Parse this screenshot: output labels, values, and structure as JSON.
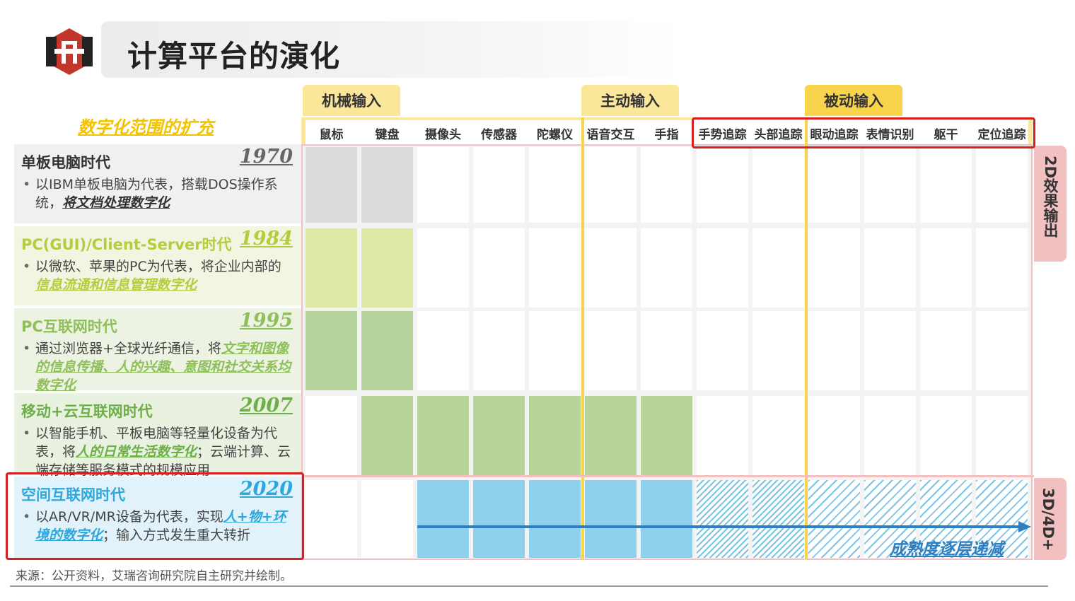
{
  "title": "计算平台的演化",
  "scope_label": "数字化范围的扩充",
  "groups": {
    "mechanical": "机械输入",
    "active": "主动输入",
    "passive": "被动输入"
  },
  "columns": [
    "鼠标",
    "键盘",
    "摄像头",
    "传感器",
    "陀螺仪",
    "语音交互",
    "手指",
    "手势追踪",
    "头部追踪",
    "眼动追踪",
    "表情识别",
    "躯干",
    "定位追踪"
  ],
  "eras": [
    {
      "name": "单板电脑时代",
      "year": "1970",
      "color": "#333333",
      "desc_pre": "以IBM单板电脑为代表，搭载DOS操作系统，",
      "desc_hl": "将文档处理数字化",
      "desc_post": ""
    },
    {
      "name": "PC(GUI)/Client-Server时代",
      "year": "1984",
      "color": "#b5cc3c",
      "desc_pre": "以微软、苹果的PC为代表，将企业内部的",
      "desc_hl": "信息流通和信息管理数字化",
      "desc_post": ""
    },
    {
      "name": "PC互联网时代",
      "year": "1995",
      "color": "#8fbf5a",
      "desc_pre": "通过浏览器+全球光纤通信，将",
      "desc_hl": "文字和图像的信息传播、人的兴趣、意图和社交关系均数字化",
      "desc_post": ""
    },
    {
      "name": "移动+云互联网时代",
      "year": "2007",
      "color": "#6eaf48",
      "desc_pre": "以智能手机、平板电脑等轻量化设备为代表，将",
      "desc_hl": "人的日常生活数字化",
      "desc_post": "；云端计算、云端存储等服务模式的规模应用"
    },
    {
      "name": "空间互联网时代",
      "year": "2020",
      "color": "#2ea8dc",
      "desc_pre": "以AR/VR/MR设备为代表，实现",
      "desc_hl": "人+物+环境的数字化",
      "desc_post": "；输入方式发生重大转折"
    }
  ],
  "side_labels": {
    "output_2d": "2D效果输出",
    "output_3d": "3D/4D+"
  },
  "maturity_label": "成熟度逐层递减",
  "source": "来源：公开资料，艾瑞咨询研究院自主研究并绘制。",
  "colors": {
    "gray": "#dcdcdc",
    "light_green": "#dfe9a6",
    "green": "#b6d59c",
    "mid_green": "#b6d39a",
    "blue": "#8fd0ec",
    "red": "#d42020",
    "yellow": "#f7d44c"
  },
  "grid": [
    [
      "gray",
      "gray",
      "",
      "",
      "",
      "",
      "",
      "",
      "",
      "",
      "",
      "",
      ""
    ],
    [
      "light_green",
      "light_green",
      "",
      "",
      "",
      "",
      "",
      "",
      "",
      "",
      "",
      "",
      ""
    ],
    [
      "green",
      "green",
      "",
      "",
      "",
      "",
      "",
      "",
      "",
      "",
      "",
      "",
      ""
    ],
    [
      "",
      "mid_green",
      "mid_green",
      "mid_green",
      "mid_green",
      "mid_green",
      "mid_green",
      "",
      "",
      "",
      "",
      "",
      ""
    ],
    [
      "",
      "",
      "blue",
      "blue",
      "blue",
      "blue",
      "blue",
      "hatch",
      "hatch",
      "dash",
      "dash",
      "dash",
      "dash"
    ]
  ]
}
